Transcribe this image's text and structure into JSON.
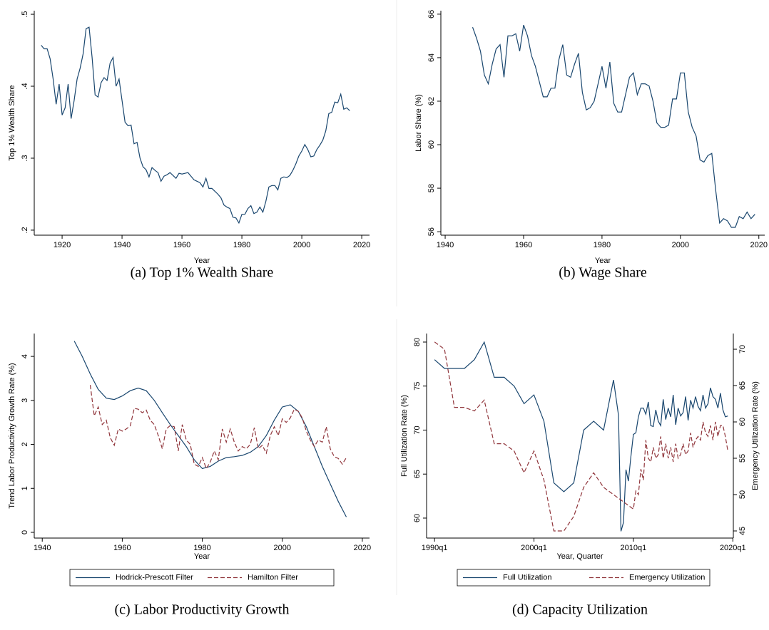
{
  "chart_data": [
    {
      "type": "line",
      "title": "(a) Top 1% Wealth Share",
      "xlabel": "Year",
      "ylabel": "Top 1% Wealth Share",
      "x": [
        1913,
        1914,
        1915,
        1916,
        1917,
        1918,
        1919,
        1920,
        1921,
        1922,
        1923,
        1924,
        1925,
        1926,
        1927,
        1928,
        1929,
        1930,
        1931,
        1932,
        1933,
        1934,
        1935,
        1936,
        1937,
        1938,
        1939,
        1940,
        1941,
        1942,
        1943,
        1944,
        1945,
        1946,
        1947,
        1948,
        1949,
        1950,
        1951,
        1952,
        1953,
        1954,
        1955,
        1956,
        1957,
        1958,
        1959,
        1960,
        1961,
        1962,
        1963,
        1964,
        1965,
        1966,
        1967,
        1968,
        1969,
        1970,
        1971,
        1972,
        1973,
        1974,
        1975,
        1976,
        1977,
        1978,
        1979,
        1980,
        1981,
        1982,
        1983,
        1984,
        1985,
        1986,
        1987,
        1988,
        1989,
        1990,
        1991,
        1992,
        1993,
        1994,
        1995,
        1996,
        1997,
        1998,
        1999,
        2000,
        2001,
        2002,
        2003,
        2004,
        2005,
        2006,
        2007,
        2008,
        2009,
        2010,
        2011,
        2012,
        2013,
        2014,
        2015,
        2016
      ],
      "series": [
        {
          "color": "#1a476f",
          "values": [
            0.457,
            0.452,
            0.452,
            0.438,
            0.41,
            0.375,
            0.403,
            0.36,
            0.37,
            0.403,
            0.355,
            0.38,
            0.41,
            0.425,
            0.445,
            0.48,
            0.482,
            0.44,
            0.388,
            0.385,
            0.405,
            0.412,
            0.408,
            0.432,
            0.44,
            0.4,
            0.41,
            0.38,
            0.35,
            0.345,
            0.346,
            0.32,
            0.322,
            0.3,
            0.288,
            0.284,
            0.274,
            0.287,
            0.283,
            0.28,
            0.268,
            0.275,
            0.277,
            0.28,
            0.276,
            0.272,
            0.279,
            0.278,
            0.279,
            0.28,
            0.275,
            0.27,
            0.268,
            0.266,
            0.26,
            0.272,
            0.258,
            0.258,
            0.254,
            0.25,
            0.245,
            0.235,
            0.232,
            0.23,
            0.218,
            0.217,
            0.21,
            0.222,
            0.222,
            0.23,
            0.234,
            0.223,
            0.225,
            0.232,
            0.225,
            0.24,
            0.26,
            0.262,
            0.262,
            0.256,
            0.272,
            0.274,
            0.273,
            0.276,
            0.283,
            0.292,
            0.303,
            0.31,
            0.319,
            0.312,
            0.302,
            0.303,
            0.312,
            0.318,
            0.325,
            0.338,
            0.362,
            0.364,
            0.378,
            0.377,
            0.389,
            0.368,
            0.37,
            0.366
          ]
        }
      ],
      "xlim": [
        1910.7,
        2022.6
      ],
      "ylim": [
        0.193,
        0.505
      ],
      "xticks": [
        1920,
        1940,
        1960,
        1980,
        2000,
        2020
      ],
      "yticks": [
        {
          "value": 0.2,
          "label": ".2"
        },
        {
          "value": 0.3,
          "label": ".3"
        },
        {
          "value": 0.4,
          "label": ".4"
        },
        {
          "value": 0.5,
          "label": ".5"
        }
      ]
    },
    {
      "type": "line",
      "title": "(b) Wage Share",
      "xlabel": "Year",
      "ylabel": "Labor Share (%)",
      "x": [
        1947,
        1948,
        1949,
        1950,
        1951,
        1952,
        1953,
        1954,
        1955,
        1956,
        1957,
        1958,
        1959,
        1960,
        1961,
        1962,
        1963,
        1964,
        1965,
        1966,
        1967,
        1968,
        1969,
        1970,
        1971,
        1972,
        1973,
        1974,
        1975,
        1976,
        1977,
        1978,
        1979,
        1980,
        1981,
        1982,
        1983,
        1984,
        1985,
        1986,
        1987,
        1988,
        1989,
        1990,
        1991,
        1992,
        1993,
        1994,
        1995,
        1996,
        1997,
        1998,
        1999,
        2000,
        2001,
        2002,
        2003,
        2004,
        2005,
        2006,
        2007,
        2008,
        2009,
        2010,
        2011,
        2012,
        2013,
        2014,
        2015,
        2016,
        2017,
        2018,
        2019
      ],
      "series": [
        {
          "color": "#1a476f",
          "values": [
            65.4,
            64.9,
            64.3,
            63.2,
            62.8,
            63.7,
            64.4,
            64.6,
            63.1,
            65.0,
            65.0,
            65.1,
            64.3,
            65.5,
            65.0,
            64.1,
            63.6,
            62.9,
            62.2,
            62.2,
            62.6,
            62.6,
            63.9,
            64.6,
            63.2,
            63.1,
            63.7,
            64.2,
            62.4,
            61.6,
            61.7,
            62.0,
            62.8,
            63.6,
            62.6,
            63.8,
            61.9,
            61.5,
            61.5,
            62.3,
            63.1,
            63.3,
            62.3,
            62.8,
            62.8,
            62.7,
            62.0,
            61.0,
            60.8,
            60.8,
            60.9,
            62.1,
            62.1,
            63.3,
            63.3,
            61.5,
            60.8,
            60.4,
            59.3,
            59.2,
            59.5,
            59.6,
            57.9,
            56.4,
            56.6,
            56.5,
            56.2,
            56.2,
            56.7,
            56.6,
            56.9,
            56.6,
            56.8
          ]
        }
      ],
      "xlim": [
        1938.9,
        2021.5
      ],
      "ylim": [
        55.84,
        66.16
      ],
      "xticks": [
        1940,
        1960,
        1980,
        2000,
        2020
      ],
      "yticks": [
        56,
        58,
        60,
        62,
        64,
        66
      ]
    },
    {
      "type": "line",
      "title": "(c) Labor Productivity Growth",
      "xlabel": "Year",
      "ylabel": "Trend Labor Productivity Growth Rate (%)",
      "series": [
        {
          "name": "Hodrick-Prescott Filter",
          "color": "#1a476f",
          "dash": false,
          "x": [
            1948,
            1950,
            1952,
            1954,
            1956,
            1958,
            1960,
            1962,
            1964,
            1966,
            1968,
            1970,
            1972,
            1974,
            1976,
            1978,
            1980,
            1982,
            1984,
            1986,
            1988,
            1990,
            1992,
            1994,
            1996,
            1998,
            2000,
            2002,
            2004,
            2006,
            2008,
            2010,
            2012,
            2014,
            2016
          ],
          "values": [
            4.35,
            4.0,
            3.6,
            3.25,
            3.05,
            3.02,
            3.1,
            3.22,
            3.28,
            3.22,
            3.0,
            2.72,
            2.45,
            2.2,
            1.95,
            1.65,
            1.45,
            1.5,
            1.62,
            1.7,
            1.72,
            1.75,
            1.82,
            1.95,
            2.2,
            2.55,
            2.85,
            2.9,
            2.75,
            2.4,
            1.95,
            1.5,
            1.1,
            0.7,
            0.35
          ]
        },
        {
          "name": "Hamilton Filter",
          "color": "#90353b",
          "dash": true,
          "x": [
            1952,
            1953,
            1954,
            1955,
            1956,
            1957,
            1958,
            1959,
            1960,
            1961,
            1962,
            1963,
            1964,
            1965,
            1966,
            1967,
            1968,
            1969,
            1970,
            1971,
            1972,
            1973,
            1974,
            1975,
            1976,
            1977,
            1978,
            1979,
            1980,
            1981,
            1982,
            1983,
            1984,
            1985,
            1986,
            1987,
            1988,
            1989,
            1990,
            1991,
            1992,
            1993,
            1994,
            1995,
            1996,
            1997,
            1998,
            1999,
            2000,
            2001,
            2002,
            2003,
            2004,
            2005,
            2006,
            2007,
            2008,
            2009,
            2010,
            2011,
            2012,
            2013,
            2014,
            2015,
            2016
          ],
          "values": [
            3.35,
            2.65,
            2.85,
            2.45,
            2.55,
            2.15,
            1.98,
            2.35,
            2.3,
            2.35,
            2.42,
            2.82,
            2.8,
            2.72,
            2.78,
            2.55,
            2.45,
            2.2,
            1.9,
            2.35,
            2.43,
            2.4,
            1.85,
            2.45,
            2.1,
            2.0,
            1.55,
            1.5,
            1.7,
            1.45,
            1.6,
            1.85,
            1.65,
            2.35,
            2.05,
            2.35,
            2.05,
            1.85,
            1.95,
            1.9,
            2.0,
            2.38,
            1.9,
            1.98,
            1.8,
            2.2,
            2.4,
            2.2,
            2.58,
            2.5,
            2.6,
            2.8,
            2.75,
            2.6,
            2.3,
            2.1,
            1.95,
            2.1,
            2.05,
            2.4,
            1.9,
            1.72,
            1.68,
            1.55,
            1.7
          ]
        }
      ],
      "xlim": [
        1938.0,
        2021.8
      ],
      "ylim": [
        -0.13,
        4.52
      ],
      "xticks": [
        1940,
        1960,
        1980,
        2000,
        2020
      ],
      "yticks": [
        0,
        1,
        2,
        3,
        4
      ]
    },
    {
      "type": "line",
      "title": "(d) Capacity Utilization",
      "xlabel": "Year, Quarter",
      "ylabel": "Full Utilization Rate (%)",
      "y2label": "Emergency Utilization Rate (%)",
      "series": [
        {
          "name": "Full Utilization",
          "color": "#1a476f",
          "dash": false,
          "x": [
            1990,
            1991,
            1992,
            1993,
            1994,
            1995,
            1996,
            1997,
            1998,
            1999,
            2000,
            2001,
            2002,
            2003,
            2004,
            2005,
            2006,
            2007,
            2008,
            2008.5,
            2008.75,
            2009,
            2009.25,
            2009.5,
            2009.75,
            2010,
            2010.25,
            2010.5,
            2010.75,
            2011,
            2011.25,
            2011.5,
            2011.75,
            2012,
            2012.25,
            2012.5,
            2012.75,
            2013,
            2013.25,
            2013.5,
            2013.75,
            2014,
            2014.25,
            2014.5,
            2014.75,
            2015,
            2015.25,
            2015.5,
            2015.75,
            2016,
            2016.25,
            2016.5,
            2016.75,
            2017,
            2017.25,
            2017.5,
            2017.75,
            2018,
            2018.25,
            2018.5,
            2018.75,
            2019,
            2019.25,
            2019.5
          ],
          "values": [
            78,
            77,
            77,
            77,
            78,
            80,
            76,
            76,
            75,
            73,
            74,
            71,
            64,
            63,
            64,
            70,
            71,
            70,
            75.7,
            71.7,
            58.5,
            59.5,
            65.5,
            64.2,
            67,
            69.5,
            69.7,
            71.5,
            72.5,
            72.5,
            71.8,
            73.2,
            70.5,
            70.4,
            72.3,
            71,
            70.5,
            73.5,
            71.2,
            72.5,
            71.5,
            74,
            70.6,
            72.5,
            71.6,
            72,
            73.8,
            71.1,
            73.4,
            72.5,
            73.8,
            72.7,
            72.2,
            74,
            72.5,
            73,
            74.8,
            73.8,
            73.5,
            72.5,
            74.2,
            72.3,
            71.5,
            71.6
          ]
        },
        {
          "name": "Emergency Utilization",
          "color": "#90353b",
          "dash": true,
          "axis": "y2",
          "x": [
            1990,
            1991,
            1992,
            1993,
            1994,
            1995,
            1996,
            1997,
            1998,
            1999,
            2000,
            2001,
            2002,
            2003,
            2004,
            2005,
            2006,
            2007,
            2008,
            2009,
            2010,
            2010.25,
            2010.5,
            2010.75,
            2011,
            2011.25,
            2011.5,
            2011.75,
            2012,
            2012.25,
            2012.5,
            2012.75,
            2013,
            2013.25,
            2013.5,
            2013.75,
            2014,
            2014.25,
            2014.5,
            2014.75,
            2015,
            2015.25,
            2015.5,
            2015.75,
            2016,
            2016.25,
            2016.5,
            2016.75,
            2017,
            2017.25,
            2017.5,
            2017.75,
            2018,
            2018.25,
            2018.5,
            2018.75,
            2019,
            2019.25,
            2019.5
          ],
          "values": [
            71,
            70,
            62,
            62,
            61.5,
            63,
            57,
            57,
            56,
            53,
            56,
            52,
            45,
            45,
            47,
            51,
            53,
            51,
            50,
            49,
            48,
            50.5,
            50,
            53.5,
            52,
            57.5,
            55,
            54.5,
            56.5,
            55,
            55.5,
            58,
            55,
            57,
            55,
            56.5,
            54.5,
            57,
            55,
            55.5,
            57,
            55.5,
            56,
            58.5,
            56.5,
            57.5,
            58,
            57.5,
            60,
            58.5,
            58,
            59.5,
            57.5,
            60,
            58,
            59.5,
            59.5,
            58,
            56
          ]
        }
      ],
      "xlim": [
        1989.2,
        2020.05
      ],
      "ylim": [
        57.73,
        80.97
      ],
      "y2lim": [
        44.02,
        72.16
      ],
      "xticks": [
        {
          "value": 1990,
          "label": "1990q1"
        },
        {
          "value": 2000,
          "label": "2000q1"
        },
        {
          "value": 2010,
          "label": "2010q1"
        },
        {
          "value": 2020,
          "label": "2020q1"
        }
      ],
      "yticks": [
        60,
        65,
        70,
        75,
        80
      ],
      "y2ticks": [
        45,
        50,
        55,
        60,
        65,
        70
      ]
    }
  ]
}
